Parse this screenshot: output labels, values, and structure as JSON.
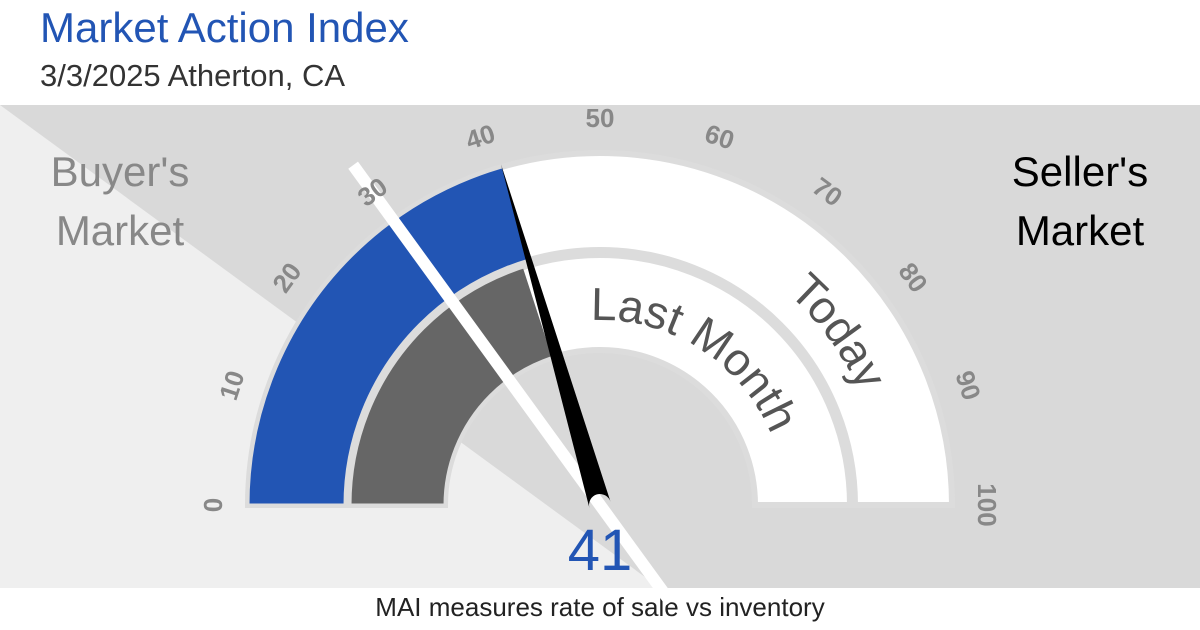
{
  "chart_data": {
    "type": "gauge",
    "title": "Market Action Index",
    "subtitle": "3/3/2025 Atherton, CA",
    "left_label": [
      "Buyer's",
      "Market"
    ],
    "right_label": [
      "Seller's",
      "Market"
    ],
    "note": "MAI measures rate of sale vs inventory",
    "range": [
      0,
      100
    ],
    "ticks": [
      0,
      10,
      20,
      30,
      40,
      50,
      60,
      70,
      80,
      90,
      100
    ],
    "threshold": 30,
    "series": [
      {
        "name": "Last Month",
        "value": 40,
        "color": "#666666"
      },
      {
        "name": "Today",
        "value": 41,
        "color": "#2255b4"
      }
    ]
  }
}
